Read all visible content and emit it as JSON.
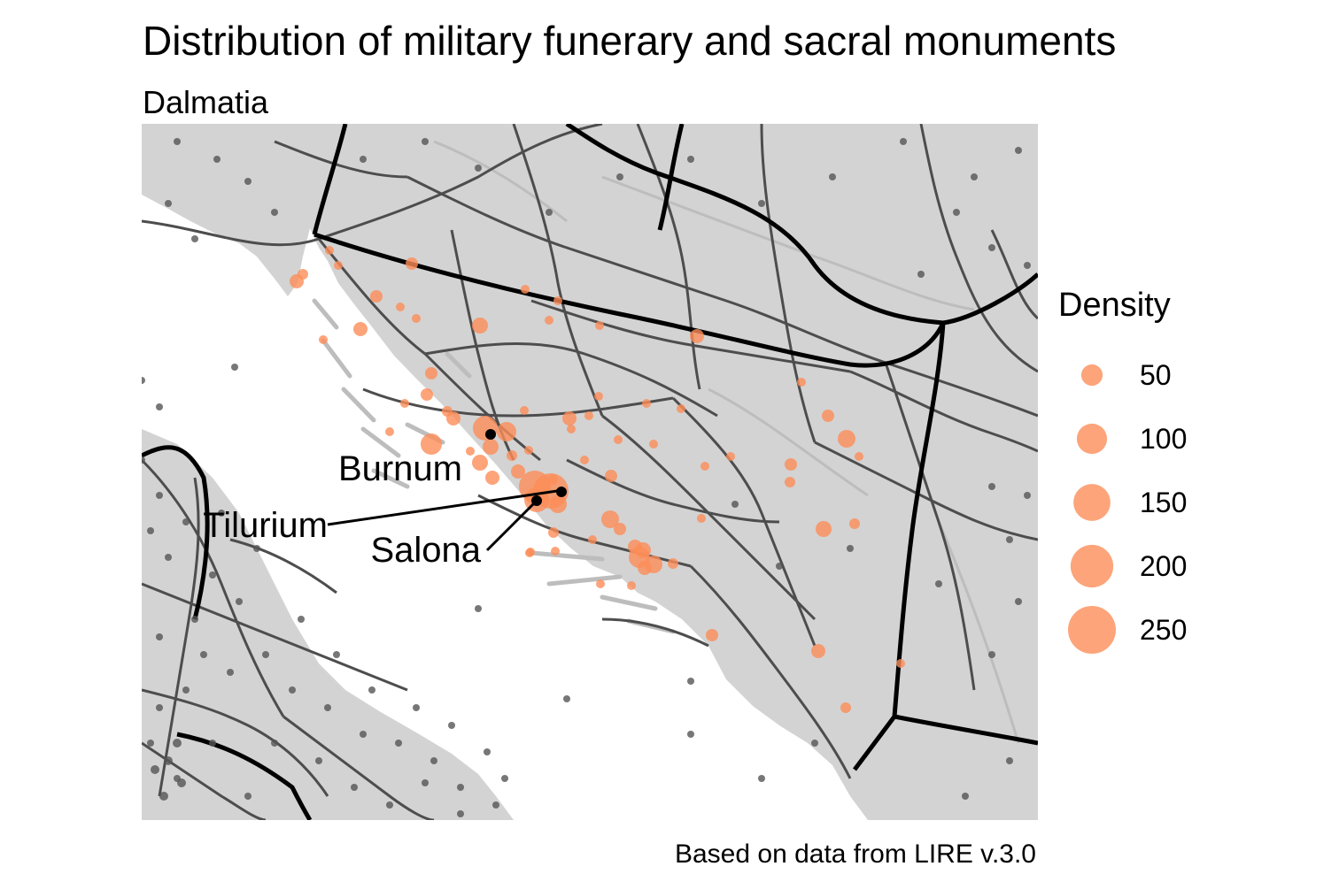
{
  "title": "Distribution of military funerary and sacral monuments",
  "subtitle": "Dalmatia",
  "caption": "Based on data from LIRE v.3.0",
  "legend": {
    "title": "Density",
    "items": [
      {
        "label": "50",
        "value": 50
      },
      {
        "label": "100",
        "value": 100
      },
      {
        "label": "150",
        "value": 150
      },
      {
        "label": "200",
        "value": 200
      },
      {
        "label": "250",
        "value": 250
      }
    ]
  },
  "sites": [
    {
      "name": "Burnum"
    },
    {
      "name": "Tilurium"
    },
    {
      "name": "Salona"
    }
  ],
  "colors": {
    "land": "#d3d3d3",
    "sea": "#ffffff",
    "roads": "#4d4d4d",
    "rivers": "#bdbdbd",
    "province_boundaries": "#000000",
    "density_points": "#fc8d59",
    "background_points": "#555555"
  }
}
